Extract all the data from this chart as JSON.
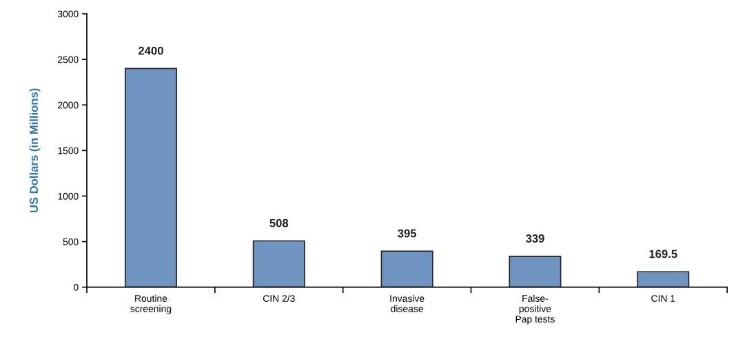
{
  "chart_data": {
    "type": "bar",
    "ylabel": "US Dollars (in Millions)",
    "categories": [
      "Routine\nscreening",
      "CIN 2/3",
      "Invasive\ndisease",
      "False-\npositive\nPap tests",
      "CIN 1"
    ],
    "values": [
      2400,
      508,
      395,
      339,
      169.5
    ],
    "color": "#7094c0",
    "ylim": [
      0,
      3000
    ],
    "yticks": [
      0,
      500,
      1000,
      1500,
      2000,
      2500,
      3000
    ],
    "data_labels": true,
    "grid": false,
    "legend": false
  }
}
